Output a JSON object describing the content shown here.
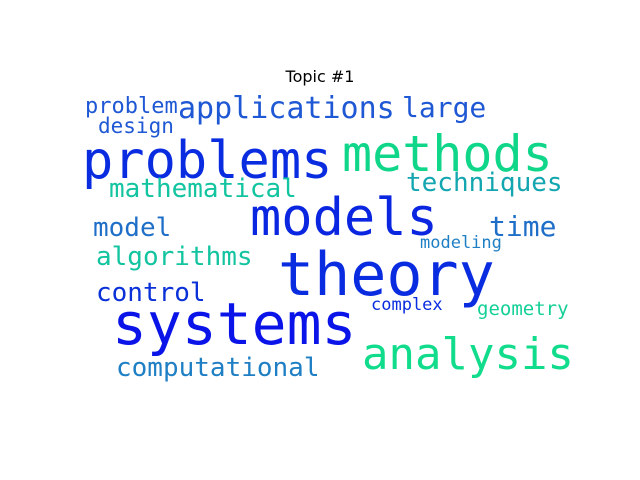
{
  "title": "Topic #1",
  "colors": {
    "deep_blue": "#0a1ee6",
    "blue": "#1f58d4",
    "steel_blue": "#1f7fc4",
    "teal": "#13b6a6",
    "green": "#10d68a"
  },
  "words": [
    {
      "text": "problem",
      "color": "#1f58d4"
    },
    {
      "text": "applications",
      "color": "#1f58d4"
    },
    {
      "text": "large",
      "color": "#1f58d4"
    },
    {
      "text": "design",
      "color": "#1f58d4"
    },
    {
      "text": "problems",
      "color": "#0a2ce0"
    },
    {
      "text": "methods",
      "color": "#10d68a"
    },
    {
      "text": "mathematical",
      "color": "#13c4a0"
    },
    {
      "text": "techniques",
      "color": "#13a6b0"
    },
    {
      "text": "models",
      "color": "#0a26e0"
    },
    {
      "text": "model",
      "color": "#1f6fc8"
    },
    {
      "text": "time",
      "color": "#1f6fc8"
    },
    {
      "text": "modeling",
      "color": "#1f7fc4"
    },
    {
      "text": "algorithms",
      "color": "#13c4a0"
    },
    {
      "text": "theory",
      "color": "#0a2ce0"
    },
    {
      "text": "control",
      "color": "#0a30d8"
    },
    {
      "text": "complex",
      "color": "#0a2ce0"
    },
    {
      "text": "geometry",
      "color": "#13d096"
    },
    {
      "text": "systems",
      "color": "#0a14e8"
    },
    {
      "text": "analysis",
      "color": "#10dc8c"
    },
    {
      "text": "computational",
      "color": "#1f7fc4"
    }
  ]
}
